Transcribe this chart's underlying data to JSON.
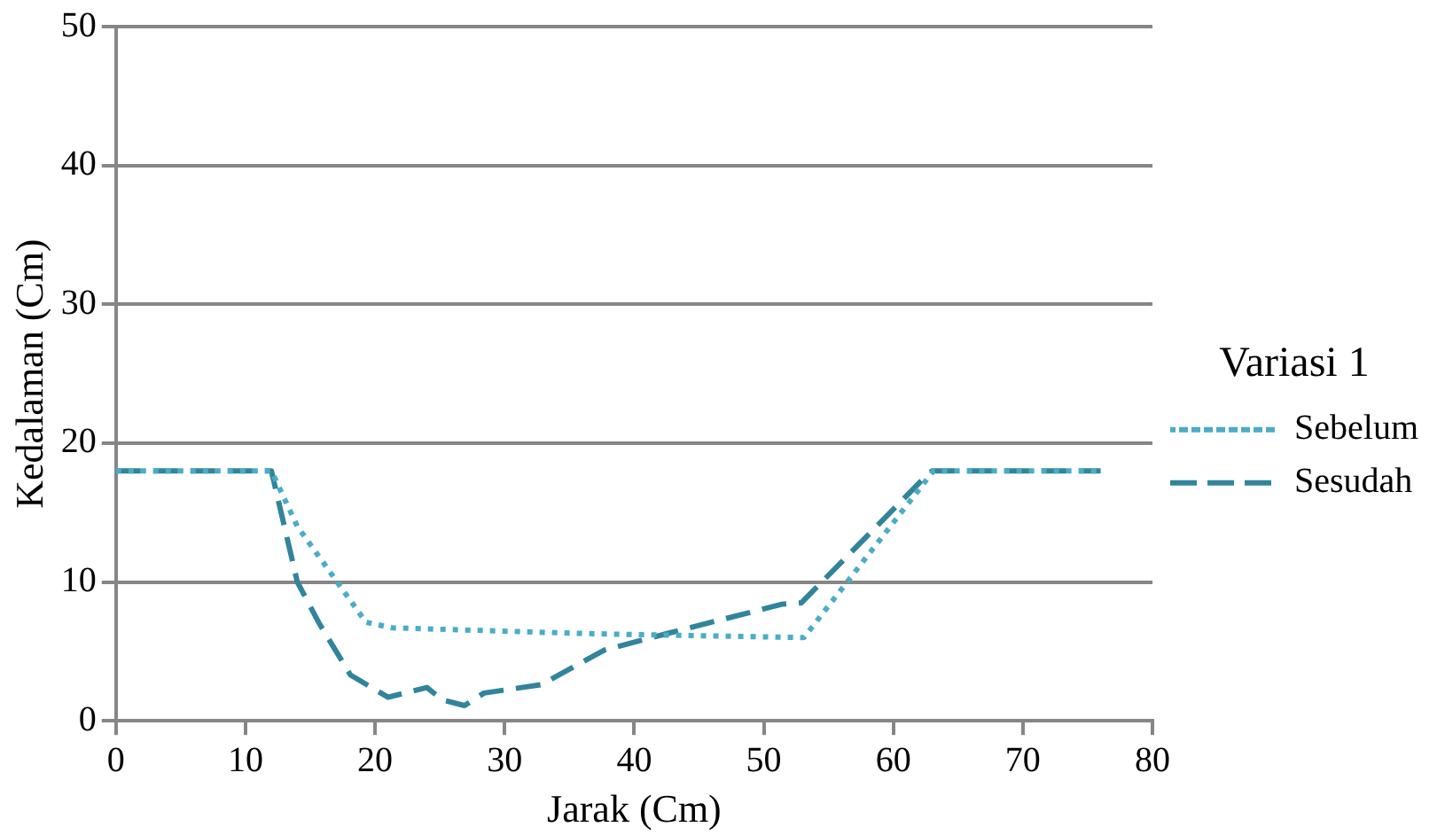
{
  "chart_data": {
    "type": "line",
    "xlabel": "Jarak (Cm)",
    "ylabel": "Kedalaman (Cm)",
    "legend_title": "Variasi 1",
    "legend": "right",
    "grid": "y",
    "marker": "none",
    "xlim": [
      0,
      80
    ],
    "xticks": [
      0,
      10,
      20,
      30,
      40,
      50,
      60,
      70,
      80
    ],
    "ylim": [
      0,
      50
    ],
    "yticks": [
      0,
      10,
      20,
      30,
      40,
      50
    ],
    "series": [
      {
        "name": "Sebelum",
        "color": "#4bacc6",
        "line_style": "dotted",
        "x": [
          0,
          12,
          14,
          19.3,
          21.3,
          35.7,
          40.6,
          53.1,
          63.1,
          76
        ],
        "values": [
          18,
          18,
          14,
          7.1,
          6.7,
          6.3,
          6.2,
          6,
          18,
          18
        ]
      },
      {
        "name": "Sesudah",
        "color": "#31849b",
        "line_style": "dashed",
        "x": [
          0,
          12,
          14,
          15.7,
          18.1,
          21,
          24,
          25.2,
          26.9,
          28.4,
          32.8,
          37.7,
          42.6,
          51.4,
          52.9,
          62.6,
          63,
          76
        ],
        "values": [
          18,
          18,
          10,
          7,
          3.3,
          1.7,
          2.4,
          1.5,
          1.1,
          2,
          2.6,
          5.1,
          6.3,
          8.4,
          8.5,
          17.7,
          18,
          18
        ]
      }
    ]
  }
}
